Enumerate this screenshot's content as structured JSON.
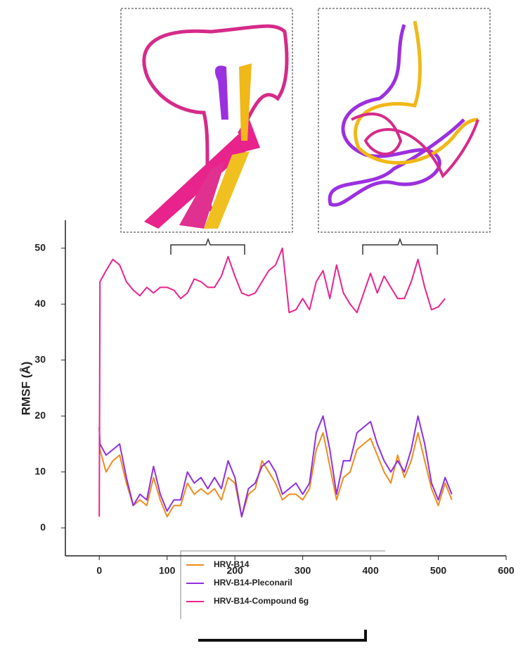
{
  "chart_data": {
    "type": "line",
    "ylabel": "RMSF (Å)",
    "x": [
      0,
      1,
      10,
      20,
      30,
      40,
      50,
      60,
      70,
      80,
      90,
      100,
      110,
      120,
      130,
      140,
      150,
      160,
      170,
      180,
      190,
      200,
      210,
      220,
      230,
      240,
      250,
      260,
      270,
      280,
      290,
      300,
      310,
      320,
      330,
      340,
      350,
      360,
      370,
      380,
      390,
      400,
      410,
      420,
      430,
      440,
      450,
      460,
      470,
      480,
      490,
      500,
      510,
      520
    ],
    "series": [
      {
        "name": "HRV-B14",
        "color": "#ec8c1c",
        "values": [
          15,
          14,
          10,
          12,
          13,
          8,
          4,
          5,
          4,
          9,
          5,
          2,
          4,
          4,
          8,
          6,
          7,
          6,
          7,
          5,
          9,
          8,
          2,
          6,
          7,
          12,
          10,
          8,
          5,
          6,
          6,
          5,
          7,
          14,
          17,
          11,
          5,
          9,
          10,
          14,
          15,
          16,
          13,
          10,
          8,
          13,
          9,
          12,
          17,
          12,
          7,
          4,
          8,
          5
        ]
      },
      {
        "name": "HRV-B14-Pleconaril",
        "color": "#8e2fe0",
        "values": [
          18,
          15,
          13,
          14,
          15,
          9,
          4,
          6,
          5,
          11,
          6,
          3,
          5,
          5,
          10,
          8,
          9,
          7,
          9,
          7,
          12,
          9,
          2,
          7,
          8,
          11,
          12,
          10,
          6,
          7,
          8,
          6,
          8,
          17,
          20,
          14,
          6,
          12,
          12,
          17,
          18,
          19,
          15,
          12,
          10,
          12,
          10,
          14,
          20,
          15,
          8,
          5,
          9,
          6
        ]
      },
      {
        "name": "HRV-B14-Compound  6g",
        "color": "#e8238c",
        "values": [
          2,
          44,
          46,
          48,
          47,
          44,
          42.5,
          41.5,
          43,
          42,
          43,
          43,
          42.5,
          41,
          42,
          44.5,
          44,
          43,
          43,
          45,
          48.5,
          45,
          42,
          41.5,
          42,
          44,
          46,
          47,
          50,
          38.5,
          39,
          41,
          39,
          44,
          46,
          41,
          47,
          42,
          40,
          38.5,
          42,
          45.5,
          42,
          45,
          43,
          41,
          41,
          44,
          48,
          43,
          39,
          39.5,
          41,
          null
        ]
      }
    ],
    "xlim": [
      -50,
      600
    ],
    "xticks": [
      0,
      100,
      200,
      300,
      400,
      500,
      600
    ],
    "ylim": [
      -5,
      55
    ],
    "yticks": [
      0,
      10,
      20,
      30,
      40,
      50
    ]
  }
}
